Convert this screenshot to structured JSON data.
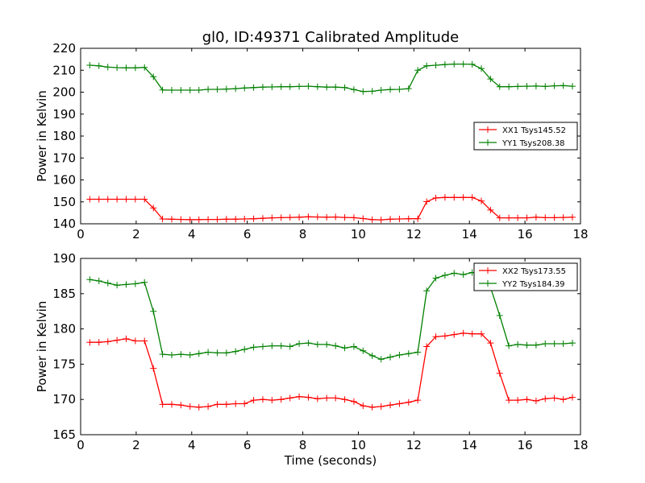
{
  "page_title": "gl0, ID:49371 Calibrated Amplitude",
  "colors": {
    "red": "#ff0000",
    "green": "#008000",
    "axis": "#000000"
  },
  "chart_data": [
    {
      "type": "line",
      "title": "gl0, ID:49371 Calibrated Amplitude",
      "xlabel": "",
      "ylabel": "Power in Kelvin",
      "xlim": [
        0,
        18
      ],
      "ylim": [
        140,
        220
      ],
      "xticks": [
        0,
        2,
        4,
        6,
        8,
        10,
        12,
        14,
        16,
        18
      ],
      "yticks": [
        140,
        150,
        160,
        170,
        180,
        190,
        200,
        210,
        220
      ],
      "grid": false,
      "legend_position": "center-right",
      "x": [
        0.33,
        0.66,
        0.98,
        1.31,
        1.64,
        1.97,
        2.3,
        2.62,
        2.95,
        3.28,
        3.61,
        3.94,
        4.26,
        4.59,
        4.92,
        5.25,
        5.58,
        5.9,
        6.23,
        6.56,
        6.89,
        7.22,
        7.54,
        7.87,
        8.2,
        8.53,
        8.86,
        9.18,
        9.51,
        9.84,
        10.17,
        10.5,
        10.82,
        11.15,
        11.48,
        11.81,
        12.14,
        12.46,
        12.79,
        13.12,
        13.45,
        13.78,
        14.1,
        14.43,
        14.76,
        15.09,
        15.42,
        15.74,
        16.07,
        16.4,
        16.73,
        17.06,
        17.38,
        17.71
      ],
      "series": [
        {
          "name": "XX1 Tsys145.52",
          "color": "#ff0000",
          "values": [
            151.2,
            151.2,
            151.2,
            151.2,
            151.2,
            151.2,
            151.2,
            147.2,
            142.2,
            142.1,
            142.0,
            141.9,
            141.9,
            142.0,
            142.0,
            142.1,
            142.1,
            142.2,
            142.3,
            142.5,
            142.7,
            142.8,
            142.9,
            143.0,
            143.2,
            143.1,
            143.0,
            143.1,
            142.9,
            142.8,
            142.4,
            141.9,
            141.8,
            142.1,
            142.2,
            142.3,
            142.3,
            150.1,
            151.8,
            152.0,
            152.0,
            152.0,
            152.0,
            150.4,
            146.3,
            142.7,
            142.7,
            142.7,
            142.7,
            143.0,
            142.8,
            142.8,
            142.9,
            143.0
          ]
        },
        {
          "name": "YY1 Tsys208.38",
          "color": "#008000",
          "values": [
            212.3,
            212.0,
            211.4,
            211.2,
            211.1,
            211.1,
            211.3,
            207.0,
            201.0,
            200.9,
            200.9,
            200.9,
            200.9,
            201.3,
            201.3,
            201.4,
            201.6,
            201.9,
            202.1,
            202.3,
            202.4,
            202.5,
            202.5,
            202.6,
            202.7,
            202.5,
            202.3,
            202.3,
            202.1,
            201.2,
            200.3,
            200.4,
            200.9,
            201.2,
            201.3,
            201.6,
            210.0,
            212.0,
            212.3,
            212.6,
            212.8,
            212.8,
            212.7,
            210.8,
            206.0,
            202.5,
            202.5,
            202.6,
            202.7,
            202.8,
            202.6,
            202.9,
            203.0,
            202.7
          ]
        }
      ]
    },
    {
      "type": "line",
      "title": "",
      "xlabel": "Time (seconds)",
      "ylabel": "Power in Kelvin",
      "xlim": [
        0,
        18
      ],
      "ylim": [
        165,
        190
      ],
      "xticks": [
        0,
        2,
        4,
        6,
        8,
        10,
        12,
        14,
        16,
        18
      ],
      "yticks": [
        165,
        170,
        175,
        180,
        185,
        190
      ],
      "grid": false,
      "legend_position": "top-right",
      "x": [
        0.33,
        0.66,
        0.98,
        1.31,
        1.64,
        1.97,
        2.3,
        2.62,
        2.95,
        3.28,
        3.61,
        3.94,
        4.26,
        4.59,
        4.92,
        5.25,
        5.58,
        5.9,
        6.23,
        6.56,
        6.89,
        7.22,
        7.54,
        7.87,
        8.2,
        8.53,
        8.86,
        9.18,
        9.51,
        9.84,
        10.17,
        10.5,
        10.82,
        11.15,
        11.48,
        11.81,
        12.14,
        12.46,
        12.79,
        13.12,
        13.45,
        13.78,
        14.1,
        14.43,
        14.76,
        15.09,
        15.42,
        15.74,
        16.07,
        16.4,
        16.73,
        17.06,
        17.38,
        17.71
      ],
      "series": [
        {
          "name": "XX2 Tsys173.55",
          "color": "#ff0000",
          "values": [
            178.1,
            178.1,
            178.2,
            178.4,
            178.6,
            178.3,
            178.3,
            174.4,
            169.3,
            169.3,
            169.2,
            169.0,
            168.9,
            169.0,
            169.3,
            169.3,
            169.4,
            169.4,
            169.9,
            170.0,
            169.9,
            170.0,
            170.2,
            170.4,
            170.3,
            170.1,
            170.2,
            170.2,
            170.0,
            169.7,
            169.1,
            168.9,
            169.0,
            169.2,
            169.4,
            169.6,
            169.9,
            177.5,
            178.9,
            179.0,
            179.2,
            179.4,
            179.3,
            179.3,
            178.0,
            173.7,
            169.9,
            169.9,
            170.0,
            169.8,
            170.1,
            170.2,
            170.0,
            170.3
          ]
        },
        {
          "name": "YY2 Tsys184.39",
          "color": "#008000",
          "values": [
            187.0,
            186.8,
            186.5,
            186.2,
            186.3,
            186.4,
            186.6,
            182.5,
            176.4,
            176.3,
            176.4,
            176.3,
            176.5,
            176.7,
            176.6,
            176.6,
            176.8,
            177.1,
            177.4,
            177.5,
            177.6,
            177.6,
            177.5,
            177.9,
            178.0,
            177.8,
            177.8,
            177.6,
            177.3,
            177.5,
            176.9,
            176.2,
            175.7,
            176.0,
            176.3,
            176.5,
            176.7,
            185.4,
            187.2,
            187.6,
            187.9,
            187.7,
            188.0,
            187.8,
            185.9,
            181.9,
            177.6,
            177.8,
            177.7,
            177.7,
            177.9,
            177.9,
            177.9,
            178.0
          ]
        }
      ]
    }
  ]
}
